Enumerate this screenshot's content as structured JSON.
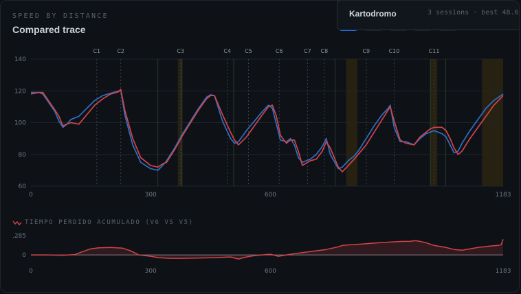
{
  "header": {
    "eyebrow": "SPEED BY DISTANCE",
    "title": "Compared trace"
  },
  "popover": {
    "track_name": "Kartodromo",
    "meta": "3 sessions · best 48.6"
  },
  "tabs": [
    {
      "active": true
    },
    {
      "active": false
    },
    {
      "active": false
    },
    {
      "active": false
    },
    {
      "active": false
    }
  ],
  "colors": {
    "v6": "#d2444a",
    "v5": "#2f6fc4",
    "corner_line": "#3a414b",
    "grid": "#1e242c",
    "zone": "#2c2412",
    "zero_line": "#7d848c"
  },
  "chart_data": [
    {
      "type": "line",
      "title": "",
      "xlabel": "",
      "ylabel": "",
      "xlim": [
        0,
        1183
      ],
      "ylim": [
        60,
        140
      ],
      "x_ticks": [
        "0",
        "300",
        "600",
        "1183"
      ],
      "x_tick_values": [
        0,
        300,
        600,
        1183
      ],
      "y_ticks": [
        "140",
        "120",
        "100",
        "80",
        "60"
      ],
      "y_tick_values": [
        140,
        120,
        100,
        80,
        60
      ],
      "grid": true,
      "corners": [
        {
          "label": "C1",
          "x": 165
        },
        {
          "label": "C2",
          "x": 225
        },
        {
          "label": "C3",
          "x": 375
        },
        {
          "label": "C4",
          "x": 492
        },
        {
          "label": "C5",
          "x": 545
        },
        {
          "label": "C6",
          "x": 622
        },
        {
          "label": "C7",
          "x": 693
        },
        {
          "label": "C8",
          "x": 735
        },
        {
          "label": "C9",
          "x": 840
        },
        {
          "label": "C10",
          "x": 910
        },
        {
          "label": "C11",
          "x": 1010
        }
      ],
      "minor_markers": [
        318,
        378,
        508,
        762,
        1001,
        1039
      ],
      "zones": [
        [
          368,
          380
        ],
        [
          790,
          818
        ],
        [
          1000,
          1018
        ],
        [
          1130,
          1183
        ]
      ],
      "series": [
        {
          "name": "V6",
          "color": "#d2444a",
          "x": [
            0,
            20,
            30,
            60,
            70,
            80,
            90,
            100,
            120,
            140,
            160,
            180,
            200,
            220,
            225,
            235,
            255,
            275,
            300,
            318,
            330,
            340,
            360,
            380,
            400,
            420,
            440,
            450,
            460,
            480,
            500,
            510,
            520,
            540,
            560,
            580,
            595,
            605,
            615,
            625,
            640,
            650,
            660,
            670,
            680,
            700,
            715,
            730,
            740,
            750,
            770,
            780,
            795,
            810,
            820,
            840,
            860,
            880,
            895,
            900,
            910,
            925,
            940,
            960,
            975,
            990,
            1000,
            1010,
            1030,
            1040,
            1050,
            1060,
            1070,
            1080,
            1100,
            1120,
            1140,
            1160,
            1183
          ],
          "y": [
            118,
            119,
            119,
            108,
            104,
            98,
            99,
            100,
            99,
            105,
            111,
            115,
            118,
            119.5,
            121,
            108,
            90,
            78,
            73,
            72,
            74,
            75,
            83,
            92,
            100,
            108,
            115,
            117,
            117,
            105,
            94,
            89,
            86,
            91,
            98,
            105,
            110,
            111,
            104,
            92,
            87,
            89,
            89,
            82,
            73,
            76,
            77,
            82,
            88,
            84,
            72,
            69,
            73,
            77,
            80,
            86,
            94,
            102,
            108,
            110,
            101,
            89,
            87,
            86,
            91,
            94,
            96,
            97,
            97,
            95,
            90,
            84,
            80,
            82,
            90,
            97,
            104,
            111,
            117
          ]
        },
        {
          "name": "V5",
          "color": "#2f6fc4",
          "x": [
            0,
            20,
            30,
            60,
            70,
            80,
            90,
            100,
            120,
            140,
            160,
            180,
            200,
            220,
            225,
            235,
            255,
            275,
            300,
            318,
            330,
            340,
            360,
            380,
            400,
            420,
            440,
            450,
            460,
            480,
            500,
            510,
            520,
            540,
            560,
            580,
            595,
            605,
            615,
            625,
            640,
            650,
            660,
            670,
            680,
            700,
            715,
            730,
            740,
            750,
            770,
            780,
            795,
            810,
            820,
            840,
            860,
            880,
            895,
            900,
            910,
            925,
            940,
            960,
            975,
            990,
            1000,
            1010,
            1030,
            1040,
            1050,
            1060,
            1070,
            1080,
            1100,
            1120,
            1140,
            1160,
            1183
          ],
          "y": [
            119,
            119,
            118,
            107,
            101,
            97,
            99,
            102,
            104,
            109,
            114,
            117,
            118.5,
            120,
            120.5,
            105,
            86,
            75,
            71,
            70,
            73,
            76,
            84,
            93,
            101,
            109,
            116,
            117.5,
            117,
            101,
            90,
            87,
            88,
            95,
            101,
            107,
            111,
            109,
            99,
            89,
            88,
            90,
            86,
            78,
            75,
            77,
            80,
            85,
            90,
            80,
            71,
            72,
            76,
            79,
            82,
            90,
            98,
            105,
            109,
            111,
            97,
            88,
            88,
            86,
            90,
            93,
            94,
            95,
            93,
            91,
            86,
            81,
            82,
            87,
            95,
            102,
            109,
            114,
            118
          ]
        }
      ]
    },
    {
      "type": "area",
      "title": "TIEMPO PERDIDO ACUMULADO (V6 VS V5)",
      "xlabel": "",
      "ylabel": "",
      "xlim": [
        0,
        1183
      ],
      "ylim": [
        -0.1,
        0.285
      ],
      "x_ticks": [
        "0",
        "300",
        "600",
        "1183"
      ],
      "x_tick_values": [
        0,
        300,
        600,
        1183
      ],
      "y_ticks": [
        ".285",
        "0"
      ],
      "y_tick_values": [
        0.285,
        0
      ],
      "grid": false,
      "series": [
        {
          "name": "",
          "color": "#d2444a",
          "x": [
            0,
            40,
            80,
            110,
            130,
            150,
            170,
            200,
            230,
            250,
            270,
            300,
            320,
            350,
            380,
            420,
            460,
            500,
            520,
            540,
            560,
            600,
            620,
            640,
            660,
            700,
            740,
            770,
            780,
            800,
            830,
            860,
            900,
            930,
            950,
            960,
            970,
            990,
            1010,
            1040,
            1060,
            1080,
            1100,
            1120,
            1150,
            1170,
            1178,
            1183
          ],
          "y": [
            0,
            0,
            -0.005,
            0.005,
            0.05,
            0.09,
            0.105,
            0.11,
            0.1,
            0.06,
            0.0,
            -0.02,
            -0.04,
            -0.05,
            -0.05,
            -0.045,
            -0.04,
            -0.03,
            -0.06,
            -0.03,
            -0.01,
            0.01,
            -0.02,
            0.0,
            0.02,
            0.05,
            0.08,
            0.12,
            0.14,
            0.15,
            0.16,
            0.175,
            0.19,
            0.2,
            0.2,
            0.21,
            0.205,
            0.18,
            0.14,
            0.11,
            0.08,
            0.07,
            0.09,
            0.11,
            0.13,
            0.14,
            0.15,
            0.23
          ]
        }
      ]
    }
  ]
}
